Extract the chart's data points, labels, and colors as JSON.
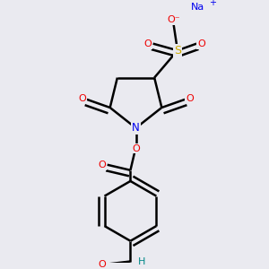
{
  "bg_color": "#eaeaf0",
  "atom_colors": {
    "C": "#000000",
    "N": "#0000ee",
    "O": "#ee0000",
    "S": "#ccaa00",
    "Na": "#0000ee",
    "H": "#008888"
  },
  "line_color": "#000000",
  "line_width": 1.8,
  "dashed_color": "#4444ff"
}
